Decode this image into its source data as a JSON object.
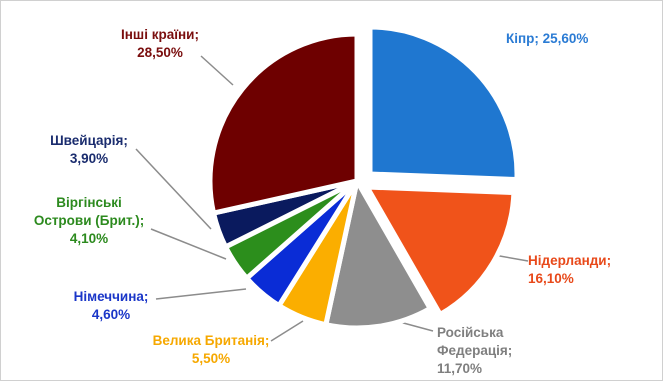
{
  "chart_data": {
    "type": "pie",
    "title": "",
    "slices": [
      {
        "label": "Кіпр; 25,60%",
        "value": 25.6,
        "color": "#1F77D0",
        "label_color": "#2A7BD4"
      },
      {
        "label": "Нідерланди; 16,10%",
        "value": 16.1,
        "color": "#F0531A",
        "label_color": "#E8491A"
      },
      {
        "label": "Російська Федерація; 11,70%",
        "value": 11.7,
        "color": "#8E8E8E",
        "label_color": "#7F7F7F"
      },
      {
        "label": "Велика Британія; 5,50%",
        "value": 5.5,
        "color": "#FBAE00",
        "label_color": "#F6A800"
      },
      {
        "label": "Німеччина; 4,60%",
        "value": 4.6,
        "color": "#0A2CD6",
        "label_color": "#1A36C8"
      },
      {
        "label": "Віргінські Острови (Брит.); 4,10%",
        "value": 4.1,
        "color": "#2C8E1C",
        "label_color": "#2C8A1E"
      },
      {
        "label": "Швейцарія; 3,90%",
        "value": 3.9,
        "color": "#0A1A5E",
        "label_color": "#1A2C6E"
      },
      {
        "label": "Інші країни; 28,50%",
        "value": 28.5,
        "color": "#6E0000",
        "label_color": "#7A0E0E"
      }
    ]
  }
}
